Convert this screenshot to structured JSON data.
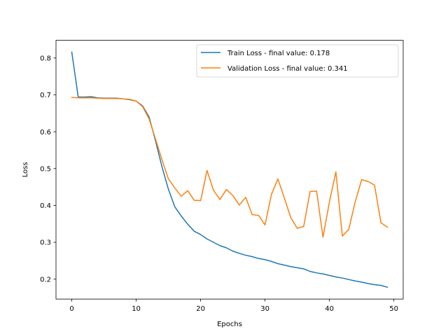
{
  "chart_data": {
    "type": "line",
    "xlabel": "Epochs",
    "ylabel": "Loss",
    "xlim": [
      -2.45,
      51.45
    ],
    "ylim": [
      0.146,
      0.848
    ],
    "xticks": [
      0,
      10,
      20,
      30,
      40,
      50
    ],
    "yticks": [
      0.2,
      0.3,
      0.4,
      0.5,
      0.6,
      0.7,
      0.8
    ],
    "xtick_labels": [
      "0",
      "10",
      "20",
      "30",
      "40",
      "50"
    ],
    "ytick_labels": [
      "0.2",
      "0.3",
      "0.4",
      "0.5",
      "0.6",
      "0.7",
      "0.8"
    ],
    "grid": false,
    "legend_position": "upper right",
    "x": [
      0,
      1,
      2,
      3,
      4,
      5,
      6,
      7,
      8,
      9,
      10,
      11,
      12,
      13,
      14,
      15,
      16,
      17,
      18,
      19,
      20,
      21,
      22,
      23,
      24,
      25,
      26,
      27,
      28,
      29,
      30,
      31,
      32,
      33,
      34,
      35,
      36,
      37,
      38,
      39,
      40,
      41,
      42,
      43,
      44,
      45,
      46,
      47,
      48,
      49
    ],
    "series": [
      {
        "name": "Train Loss - final value: 0.178",
        "color": "#1f77b4",
        "values": [
          0.816,
          0.694,
          0.694,
          0.695,
          0.692,
          0.691,
          0.691,
          0.691,
          0.689,
          0.687,
          0.683,
          0.67,
          0.64,
          0.575,
          0.505,
          0.444,
          0.396,
          0.371,
          0.349,
          0.33,
          0.321,
          0.309,
          0.3,
          0.291,
          0.285,
          0.276,
          0.27,
          0.265,
          0.261,
          0.256,
          0.253,
          0.248,
          0.242,
          0.238,
          0.234,
          0.231,
          0.228,
          0.221,
          0.217,
          0.214,
          0.21,
          0.206,
          0.203,
          0.199,
          0.195,
          0.192,
          0.188,
          0.185,
          0.183,
          0.178
        ]
      },
      {
        "name": "Validation Loss - final value: 0.341",
        "color": "#ff7f0e",
        "values": [
          0.693,
          0.692,
          0.692,
          0.692,
          0.691,
          0.69,
          0.69,
          0.69,
          0.689,
          0.688,
          0.683,
          0.668,
          0.635,
          0.58,
          0.524,
          0.472,
          0.447,
          0.425,
          0.44,
          0.414,
          0.413,
          0.495,
          0.441,
          0.416,
          0.443,
          0.427,
          0.401,
          0.422,
          0.375,
          0.373,
          0.347,
          0.43,
          0.472,
          0.42,
          0.367,
          0.338,
          0.343,
          0.438,
          0.439,
          0.314,
          0.41,
          0.491,
          0.317,
          0.335,
          0.41,
          0.47,
          0.465,
          0.455,
          0.353,
          0.341
        ]
      }
    ]
  }
}
